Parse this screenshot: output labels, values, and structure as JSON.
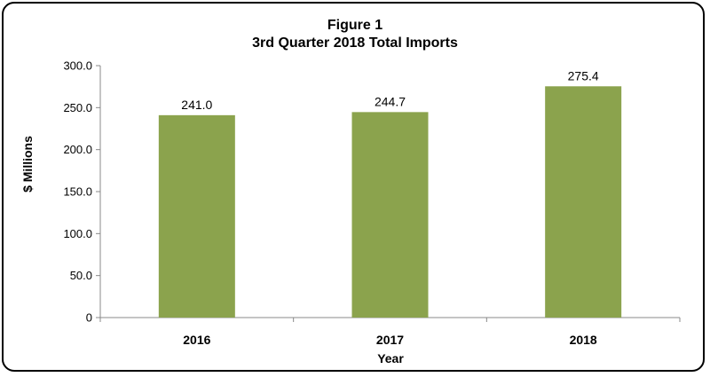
{
  "chart_data": {
    "type": "bar",
    "title": "Figure 1",
    "subtitle": "3rd Quarter 2018 Total Imports",
    "xlabel": "Year",
    "ylabel": "$ Millions",
    "categories": [
      "2016",
      "2017",
      "2018"
    ],
    "values": [
      241.0,
      244.7,
      275.4
    ],
    "data_labels": [
      "241.0",
      "244.7",
      "275.4"
    ],
    "ylim": [
      0,
      300
    ],
    "yticks": [
      0,
      50,
      100,
      150,
      200,
      250,
      300
    ],
    "ytick_labels": [
      "0",
      "50.0",
      "100.0",
      "150.0",
      "200.0",
      "250.0",
      "300.0"
    ],
    "bar_color": "#8ba34d",
    "grid": false,
    "legend": "none"
  }
}
